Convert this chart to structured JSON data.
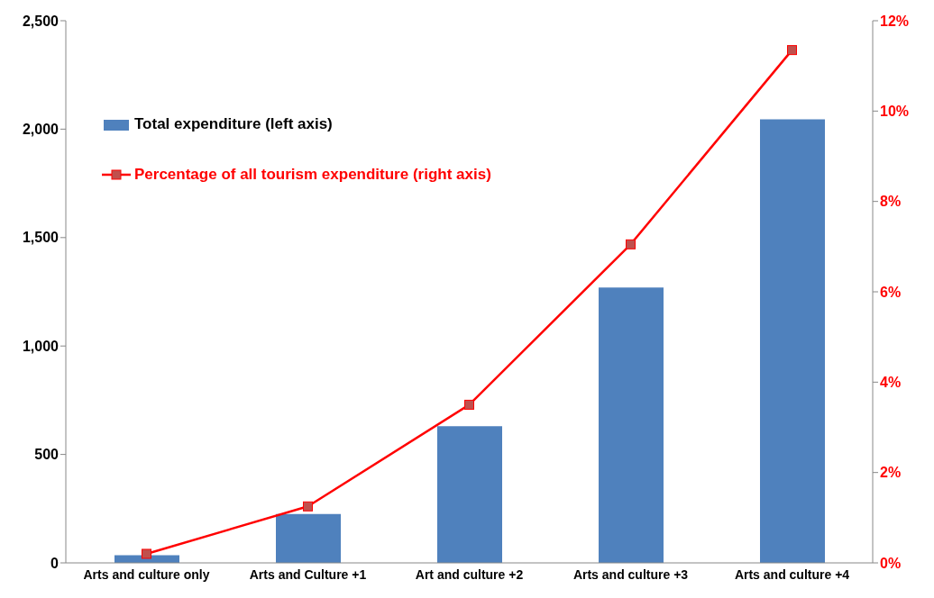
{
  "chart_data": {
    "type": "bar",
    "categories": [
      "Arts and culture only",
      "Arts and Culture +1",
      "Art and culture +2",
      "Arts and culture +3",
      "Arts and culture +4"
    ],
    "series": [
      {
        "name": "Total expenditure (left axis)",
        "color": "#4f81bd",
        "values": [
          35,
          225,
          630,
          1270,
          2045
        ]
      },
      {
        "name": "Percentage of all tourism expenditure (right axis)",
        "type": "line",
        "axis": "y2",
        "color": "#ff0000",
        "values": [
          0.2,
          1.25,
          3.5,
          7.05,
          11.35
        ]
      }
    ],
    "ylim": [
      0,
      2500
    ],
    "yticks": [
      0,
      {
        "value": 500,
        "label": "500"
      },
      {
        "value": 1000,
        "label": "1,000"
      },
      {
        "value": 1500,
        "label": "1,500"
      },
      {
        "value": 2000,
        "label": "2,000"
      },
      {
        "value": 2500,
        "label": "2,500"
      }
    ],
    "y2lim": [
      0,
      12
    ],
    "y2ticks": [
      {
        "value": 0,
        "label": "0%"
      },
      {
        "value": 2,
        "label": "2%"
      },
      {
        "value": 4,
        "label": "4%"
      },
      {
        "value": 6,
        "label": "6%"
      },
      {
        "value": 8,
        "label": "8%"
      },
      {
        "value": 10,
        "label": "10%"
      },
      {
        "value": 12,
        "label": "12%"
      }
    ],
    "grid": false,
    "legend": "top left",
    "marker": "square",
    "line_style": "solid"
  }
}
